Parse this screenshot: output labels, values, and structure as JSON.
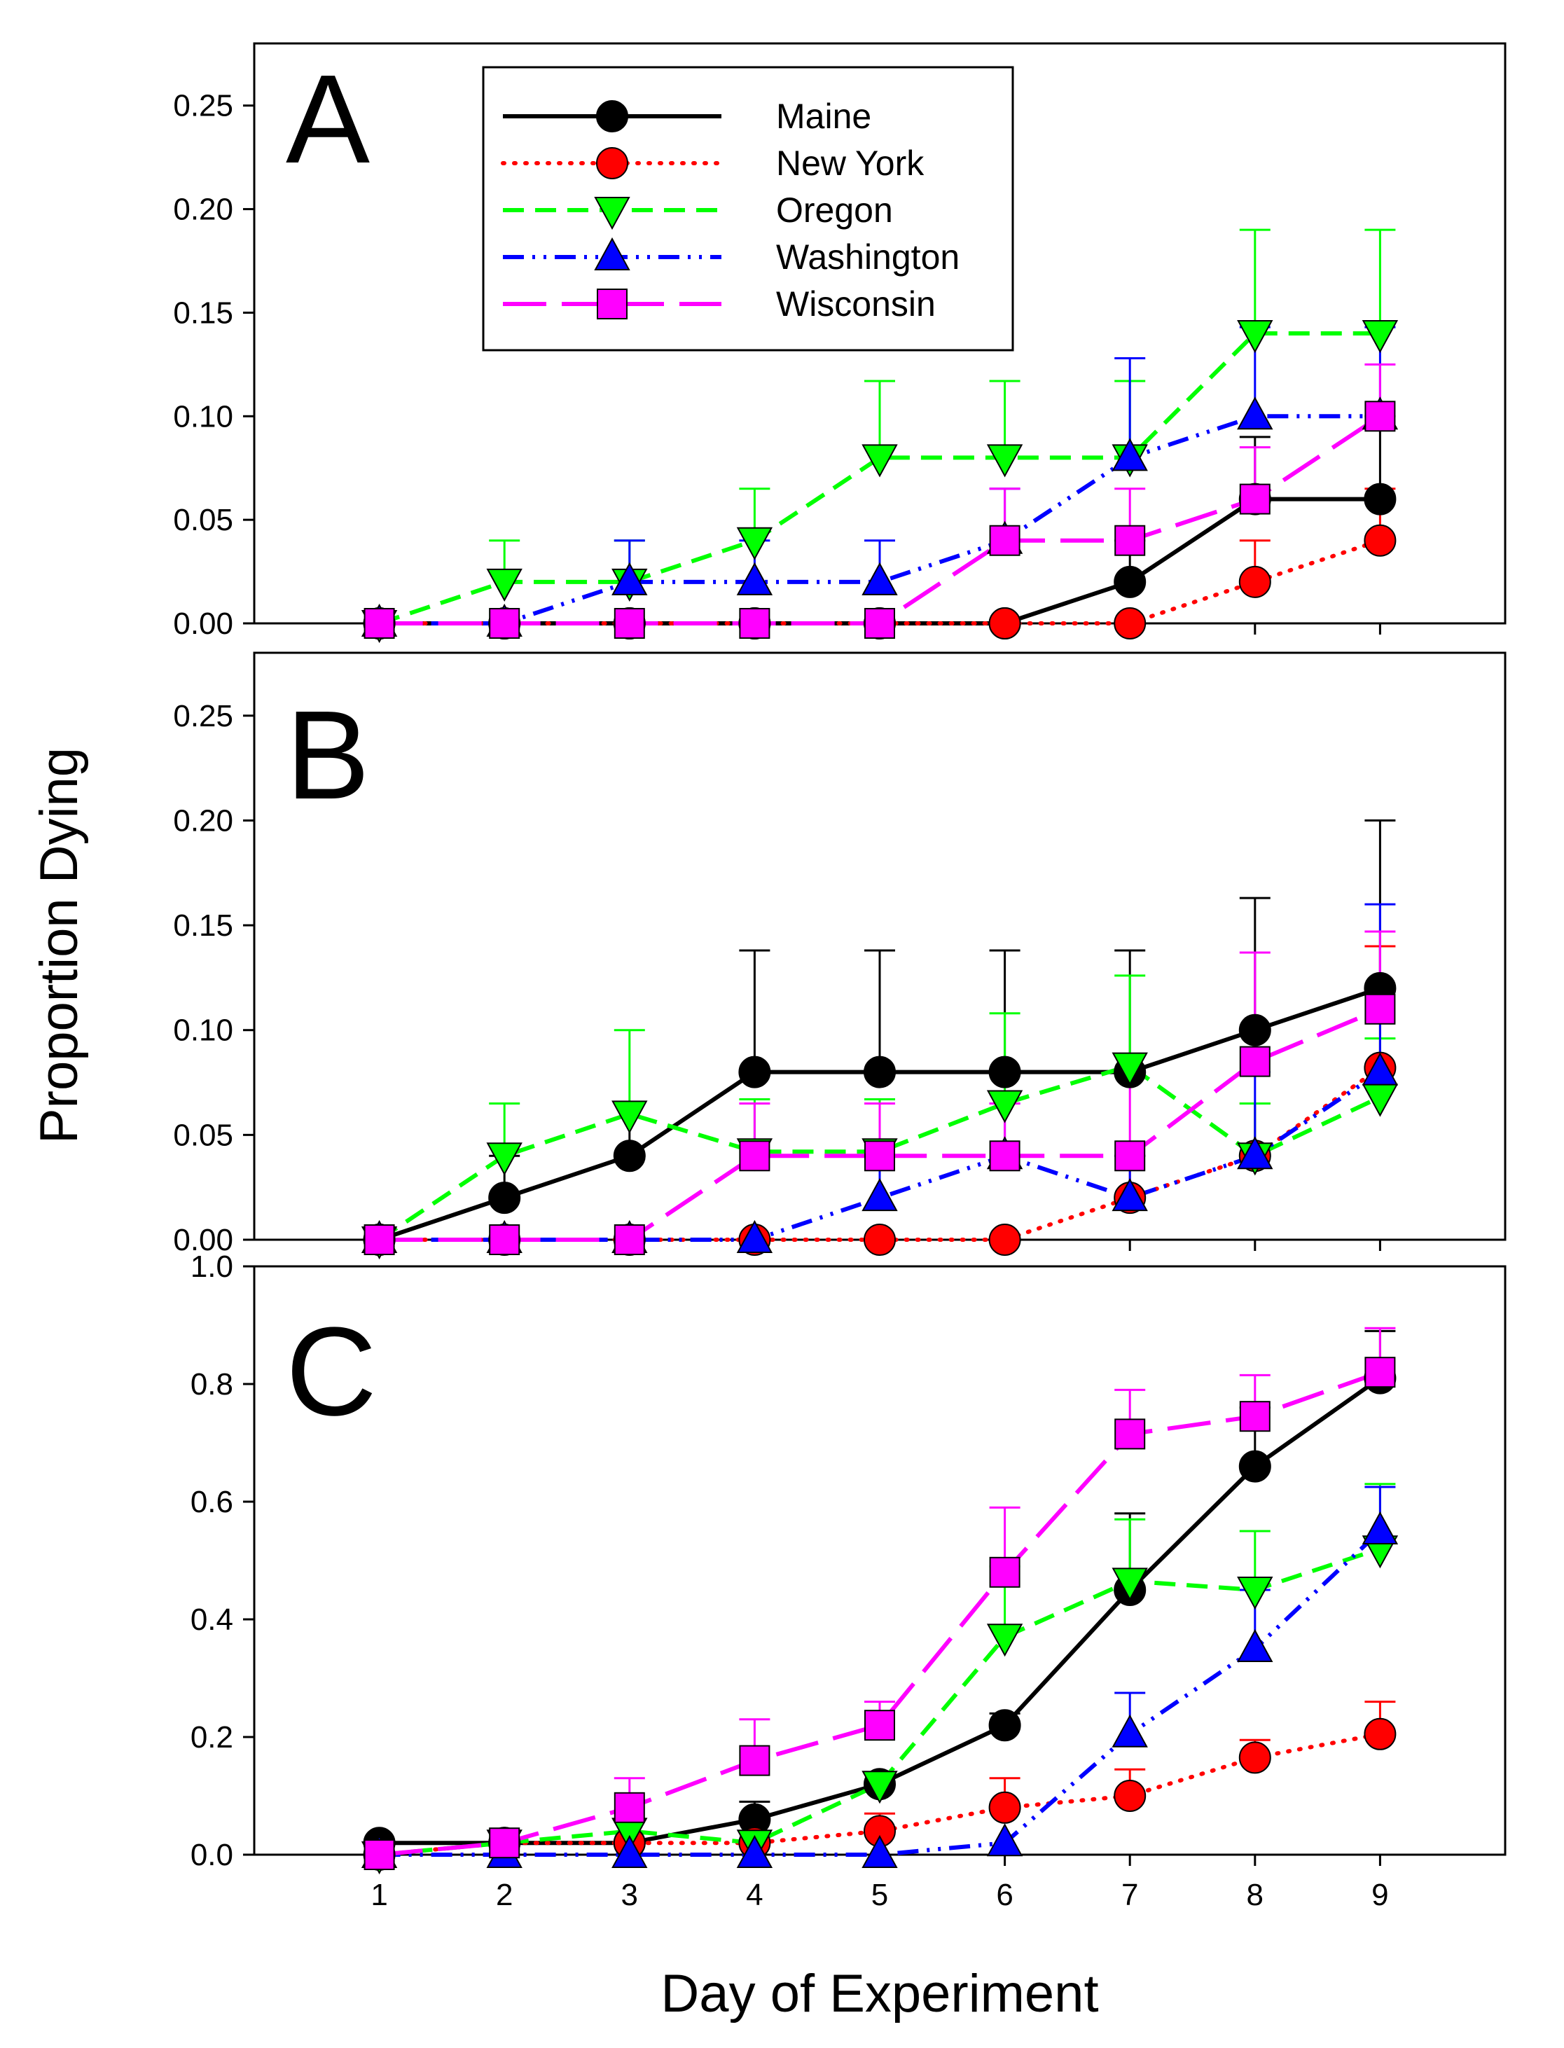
{
  "figure": {
    "ylabel": "Proportion Dying",
    "xlabel": "Day of Experiment"
  },
  "legend": {
    "entries": [
      {
        "name": "Maine",
        "color": "#000000",
        "marker": "circle",
        "dash": "solid"
      },
      {
        "name": "New York",
        "color": "#ff0000",
        "marker": "circle",
        "dash": "dotted"
      },
      {
        "name": "Oregon",
        "color": "#00ff00",
        "marker": "triangle-down",
        "dash": "dashed"
      },
      {
        "name": "Washington",
        "color": "#0000ff",
        "marker": "triangle-up",
        "dash": "dash-dot-dot"
      },
      {
        "name": "Wisconsin",
        "color": "#ff00ff",
        "marker": "square",
        "dash": "long-dash"
      }
    ]
  },
  "chart_data": [
    {
      "type": "line",
      "panel_label": "A",
      "x": [
        1,
        2,
        3,
        4,
        5,
        6,
        7,
        8,
        9
      ],
      "xticks": [
        "1",
        "2",
        "3",
        "4",
        "5",
        "6",
        "7",
        "8",
        "9"
      ],
      "xlim": [
        0,
        10
      ],
      "ylim": [
        0,
        0.28
      ],
      "yticks": [
        "0.00",
        "0.05",
        "0.10",
        "0.15",
        "0.20",
        "0.25"
      ],
      "ytick_values": [
        0,
        0.05,
        0.1,
        0.15,
        0.2,
        0.25
      ],
      "show_xtick_labels": false,
      "series": [
        {
          "name": "Maine",
          "values": [
            0,
            0,
            0,
            0,
            0,
            0,
            0.02,
            0.06,
            0.06
          ],
          "err": [
            0,
            0,
            0,
            0,
            0,
            0,
            0.02,
            0.03,
            0.04
          ]
        },
        {
          "name": "New York",
          "values": [
            0,
            0,
            0,
            0,
            0,
            0,
            0,
            0.02,
            0.04
          ],
          "err": [
            0,
            0,
            0,
            0,
            0,
            0,
            0,
            0.02,
            0.025
          ]
        },
        {
          "name": "Oregon",
          "values": [
            0,
            0.02,
            0.02,
            0.04,
            0.08,
            0.08,
            0.08,
            0.14,
            0.14
          ],
          "err": [
            0,
            0.02,
            0.02,
            0.025,
            0.037,
            0.037,
            0.037,
            0.05,
            0.05
          ]
        },
        {
          "name": "Washington",
          "values": [
            0,
            0,
            0.02,
            0.02,
            0.02,
            0.04,
            0.08,
            0.1,
            0.1
          ],
          "err": [
            0,
            0,
            0.02,
            0.02,
            0.02,
            0.025,
            0.048,
            0.043,
            0.043
          ]
        },
        {
          "name": "Wisconsin",
          "values": [
            0,
            0,
            0,
            0,
            0,
            0.04,
            0.04,
            0.06,
            0.1
          ],
          "err": [
            0,
            0,
            0,
            0,
            0,
            0.025,
            0.025,
            0.025,
            0.025
          ]
        }
      ]
    },
    {
      "type": "line",
      "panel_label": "B",
      "x": [
        1,
        2,
        3,
        4,
        5,
        6,
        7,
        8,
        9
      ],
      "xticks": [
        "1",
        "2",
        "3",
        "4",
        "5",
        "6",
        "7",
        "8",
        "9"
      ],
      "xlim": [
        0,
        10
      ],
      "ylim": [
        0,
        0.28
      ],
      "yticks": [
        "0.00",
        "0.05",
        "0.10",
        "0.15",
        "0.20",
        "0.25"
      ],
      "ytick_values": [
        0,
        0.05,
        0.1,
        0.15,
        0.2,
        0.25
      ],
      "show_xtick_labels": false,
      "series": [
        {
          "name": "Maine",
          "values": [
            0,
            0.02,
            0.04,
            0.08,
            0.08,
            0.08,
            0.08,
            0.1,
            0.12
          ],
          "err": [
            0,
            0.02,
            0.025,
            0.058,
            0.058,
            0.058,
            0.058,
            0.063,
            0.08
          ]
        },
        {
          "name": "New York",
          "values": [
            0,
            0,
            0,
            0,
            0,
            0,
            0.02,
            0.04,
            0.082
          ],
          "err": [
            0,
            0,
            0,
            0,
            0,
            0,
            0.02,
            0.025,
            0.058
          ]
        },
        {
          "name": "Oregon",
          "values": [
            0,
            0.04,
            0.06,
            0.042,
            0.042,
            0.065,
            0.083,
            0.04,
            0.068
          ],
          "err": [
            0,
            0.025,
            0.04,
            0.025,
            0.025,
            0.043,
            0.043,
            0.025,
            0.028
          ]
        },
        {
          "name": "Washington",
          "values": [
            0,
            0,
            0,
            0,
            0.02,
            0.04,
            0.02,
            0.04,
            0.08
          ],
          "err": [
            0,
            0,
            0,
            0,
            0.02,
            0.025,
            0.02,
            0.04,
            0.08
          ]
        },
        {
          "name": "Wisconsin",
          "values": [
            0,
            0,
            0,
            0.04,
            0.04,
            0.04,
            0.04,
            0.085,
            0.11
          ],
          "err": [
            0,
            0,
            0,
            0.025,
            0.025,
            0.025,
            0.04,
            0.052,
            0.037
          ]
        }
      ]
    },
    {
      "type": "line",
      "panel_label": "C",
      "x": [
        1,
        2,
        3,
        4,
        5,
        6,
        7,
        8,
        9
      ],
      "xticks": [
        "1",
        "2",
        "3",
        "4",
        "5",
        "6",
        "7",
        "8",
        "9"
      ],
      "xlim": [
        0,
        10
      ],
      "ylim": [
        0,
        1.0
      ],
      "yticks": [
        "0.0",
        "0.2",
        "0.4",
        "0.6",
        "0.8",
        "1.0"
      ],
      "ytick_values": [
        0,
        0.2,
        0.4,
        0.6,
        0.8,
        1.0
      ],
      "show_xtick_labels": true,
      "series": [
        {
          "name": "Maine",
          "values": [
            0.02,
            0.02,
            0.02,
            0.06,
            0.12,
            0.22,
            0.45,
            0.66,
            0.81
          ],
          "err": [
            0,
            0,
            0,
            0.03,
            0.02,
            0.02,
            0.13,
            0.1,
            0.08
          ]
        },
        {
          "name": "New York",
          "values": [
            0,
            0.02,
            0.02,
            0.02,
            0.04,
            0.08,
            0.1,
            0.165,
            0.205
          ],
          "err": [
            0,
            0,
            0,
            0,
            0.03,
            0.05,
            0.045,
            0.03,
            0.055
          ]
        },
        {
          "name": "Oregon",
          "values": [
            0,
            0.02,
            0.04,
            0.02,
            0.12,
            0.37,
            0.465,
            0.45,
            0.52
          ],
          "err": [
            0,
            0,
            0.02,
            0,
            0.02,
            0.12,
            0.105,
            0.1,
            0.11
          ]
        },
        {
          "name": "Washington",
          "values": [
            0,
            0,
            0,
            0,
            0,
            0.02,
            0.205,
            0.35,
            0.55
          ],
          "err": [
            0,
            0,
            0,
            0,
            0,
            0,
            0.07,
            0.1,
            0.075
          ]
        },
        {
          "name": "Wisconsin",
          "values": [
            0,
            0.02,
            0.08,
            0.16,
            0.22,
            0.48,
            0.715,
            0.745,
            0.82
          ],
          "err": [
            0,
            0,
            0.05,
            0.07,
            0.04,
            0.11,
            0.075,
            0.07,
            0.075
          ]
        }
      ]
    }
  ]
}
